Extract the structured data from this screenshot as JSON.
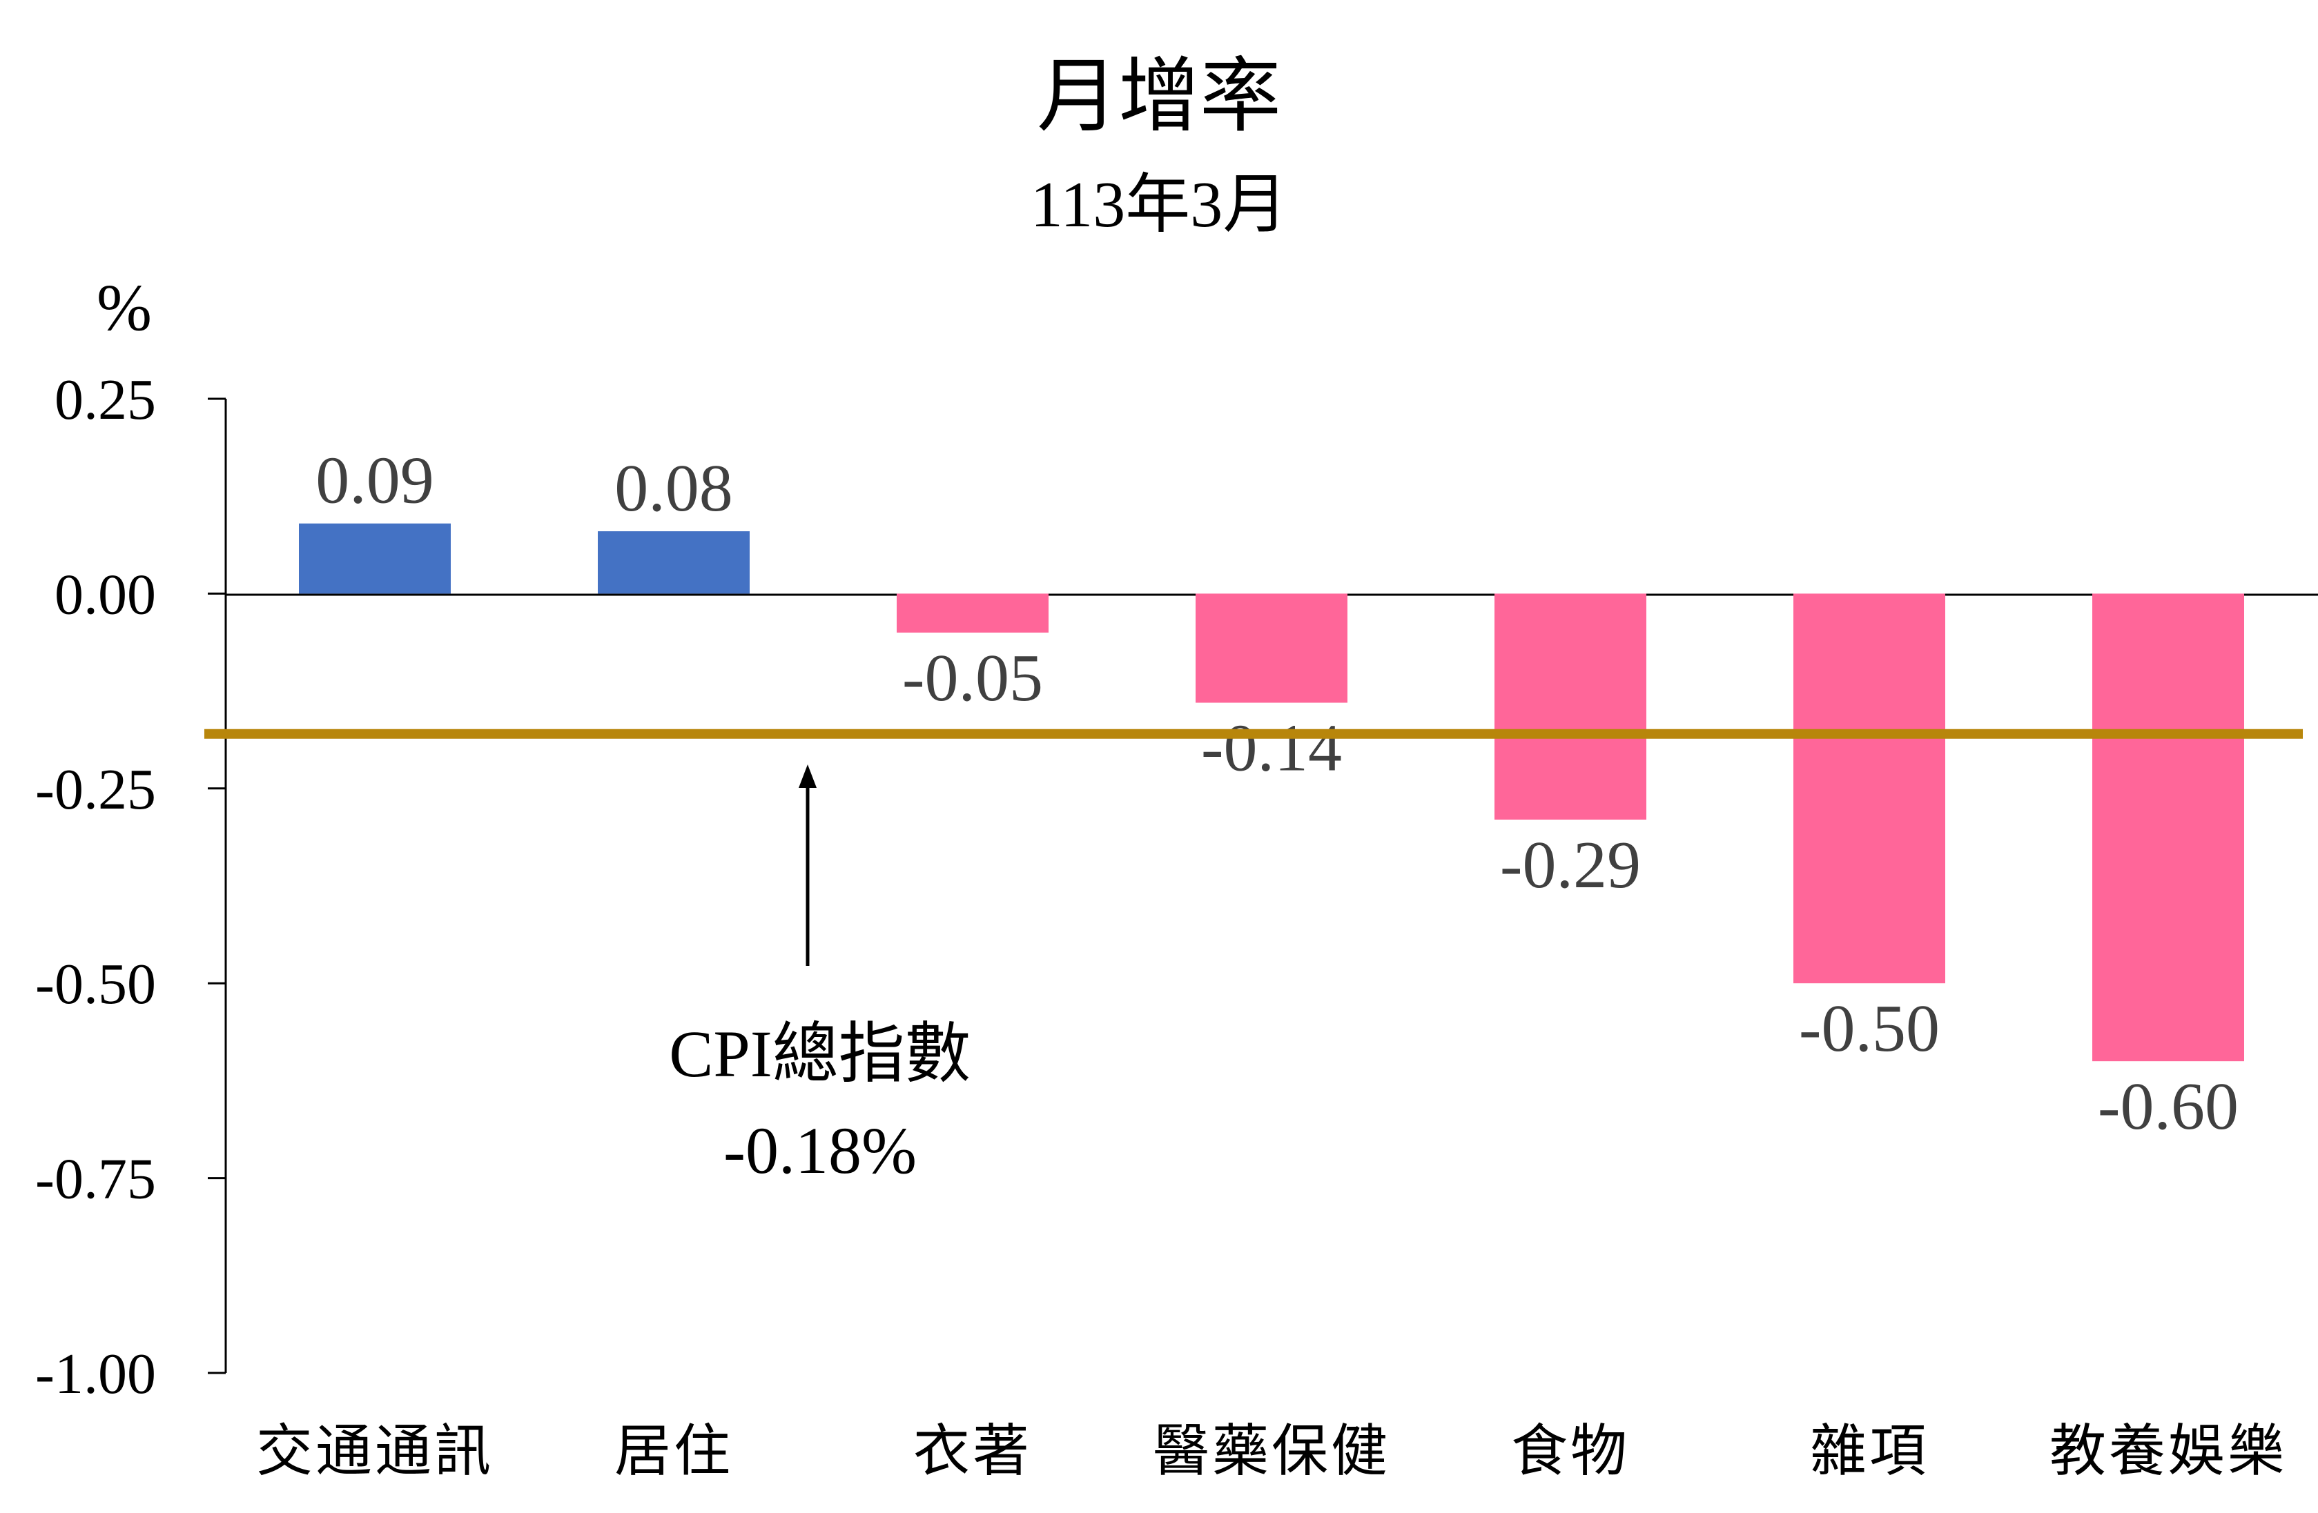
{
  "chart_data": {
    "type": "bar",
    "title": "月增率",
    "subtitle": "113年3月",
    "ylabel": "%",
    "ylim": [
      -1.0,
      0.25
    ],
    "yticks": [
      "0.25",
      "0.00",
      "-0.25",
      "-0.50",
      "-0.75",
      "-1.00"
    ],
    "ytick_values": [
      0.25,
      0.0,
      -0.25,
      -0.5,
      -0.75,
      -1.0
    ],
    "categories": [
      "交通通訊",
      "居住",
      "衣著",
      "醫藥保健",
      "食物",
      "雜項",
      "教養娛樂"
    ],
    "values": [
      0.09,
      0.08,
      -0.05,
      -0.14,
      -0.29,
      -0.5,
      -0.6
    ],
    "value_labels": [
      "0.09",
      "0.08",
      "-0.05",
      "-0.14",
      "-0.29",
      "-0.50",
      "-0.60"
    ],
    "reference_line": {
      "value": -0.18,
      "label_line1": "CPI總指數",
      "label_line2": "-0.18%",
      "color": "#B8860B"
    },
    "colors": {
      "positive": "#4472C4",
      "negative": "#FF6699",
      "axis": "#000000",
      "label_text": "#404040"
    },
    "grid": false,
    "legend": "none"
  }
}
